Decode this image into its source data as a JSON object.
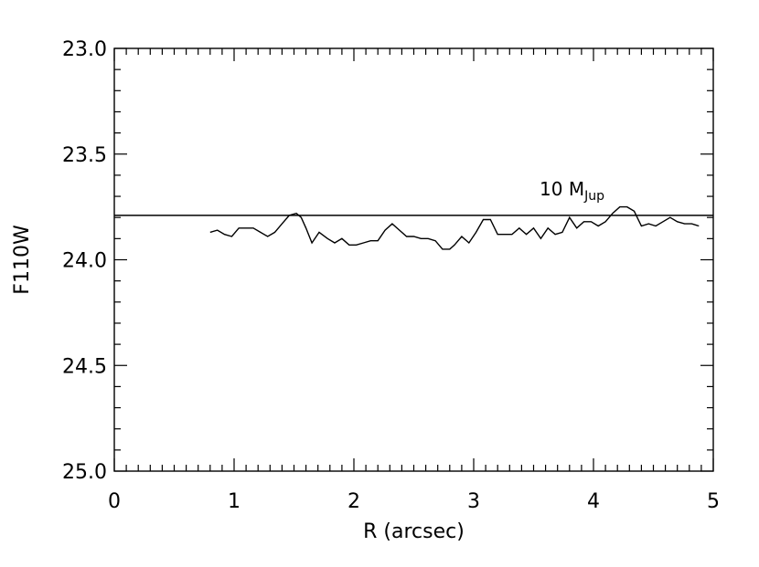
{
  "chart_data": {
    "type": "line",
    "title": "",
    "xlabel": "R (arcsec)",
    "ylabel": "F110W",
    "xlim": [
      0,
      5
    ],
    "ylim": [
      23.0,
      25.0
    ],
    "y_inverted": true,
    "grid": false,
    "x_ticks": [
      0,
      1,
      2,
      3,
      4,
      5
    ],
    "x_tick_labels": [
      "0",
      "1",
      "2",
      "3",
      "4",
      "5"
    ],
    "y_ticks": [
      23.0,
      23.5,
      24.0,
      24.5,
      25.0
    ],
    "y_tick_labels": [
      "23.0",
      "23.5",
      "24.0",
      "24.5",
      "25.0"
    ],
    "reference_line": {
      "y": 23.79,
      "label_main": "10 M",
      "label_sub": "Jup"
    },
    "series": [
      {
        "x": [
          0.8,
          0.86,
          0.92,
          0.98,
          1.04,
          1.1,
          1.16,
          1.22,
          1.28,
          1.34,
          1.4,
          1.46,
          1.52,
          1.56,
          1.6,
          1.65,
          1.71,
          1.78,
          1.84,
          1.9,
          1.96,
          2.02,
          2.08,
          2.14,
          2.2,
          2.26,
          2.32,
          2.38,
          2.44,
          2.5,
          2.56,
          2.62,
          2.68,
          2.74,
          2.8,
          2.84,
          2.9,
          2.96,
          3.02,
          3.08,
          3.14,
          3.2,
          3.26,
          3.32,
          3.38,
          3.44,
          3.5,
          3.56,
          3.62,
          3.68,
          3.74,
          3.8,
          3.86,
          3.92,
          3.98,
          4.04,
          4.1,
          4.16,
          4.22,
          4.28,
          4.34,
          4.4,
          4.46,
          4.52,
          4.58,
          4.64,
          4.7,
          4.76,
          4.82,
          4.88
        ],
        "y": [
          23.87,
          23.86,
          23.88,
          23.89,
          23.85,
          23.85,
          23.85,
          23.87,
          23.89,
          23.87,
          23.83,
          23.79,
          23.78,
          23.8,
          23.85,
          23.92,
          23.87,
          23.9,
          23.92,
          23.9,
          23.93,
          23.93,
          23.92,
          23.91,
          23.91,
          23.86,
          23.83,
          23.86,
          23.89,
          23.89,
          23.9,
          23.9,
          23.91,
          23.95,
          23.95,
          23.93,
          23.89,
          23.92,
          23.87,
          23.81,
          23.81,
          23.88,
          23.88,
          23.88,
          23.85,
          23.88,
          23.85,
          23.9,
          23.85,
          23.88,
          23.87,
          23.8,
          23.85,
          23.82,
          23.82,
          23.84,
          23.82,
          23.78,
          23.75,
          23.75,
          23.77,
          23.84,
          23.83,
          23.84,
          23.82,
          23.8,
          23.82,
          23.83,
          23.83,
          23.84
        ]
      }
    ]
  }
}
